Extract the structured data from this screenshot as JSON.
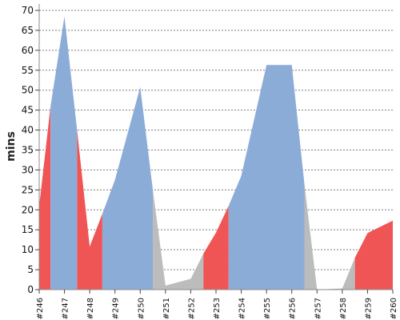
{
  "chart_data": {
    "type": "area",
    "ylabel": "mins",
    "xlabel": "",
    "ylim": [
      0,
      70
    ],
    "yticks": [
      0,
      5,
      10,
      15,
      20,
      25,
      30,
      35,
      40,
      45,
      50,
      55,
      60,
      65,
      70
    ],
    "grid": true,
    "categories": [
      "#246",
      "#247",
      "#248",
      "#249",
      "#250",
      "#251",
      "#252",
      "#253",
      "#254",
      "#255",
      "#256",
      "#257",
      "#258",
      "#259",
      "#260"
    ],
    "values": [
      21,
      68.5,
      10.8,
      27.5,
      50.8,
      1,
      2.7,
      14.3,
      28.5,
      56.3,
      56.3,
      0,
      0.3,
      14.2,
      17.3
    ],
    "segments": [
      {
        "status": "red",
        "from": 246,
        "to": 246.45,
        "y": [
          21,
          46
        ]
      },
      {
        "status": "blue",
        "from": 246.45,
        "to": 247.5,
        "y": [
          46,
          68.5,
          40
        ]
      },
      {
        "status": "red",
        "from": 247.5,
        "to": 248.5,
        "y": [
          40,
          10.8,
          19
        ]
      },
      {
        "status": "blue",
        "from": 248.5,
        "to": 250.5,
        "y": [
          19,
          27.5,
          50.8,
          25
        ]
      },
      {
        "status": "gray",
        "from": 250.5,
        "to": 252.5,
        "y": [
          25,
          1,
          2.7,
          9
        ]
      },
      {
        "status": "red",
        "from": 252.5,
        "to": 253.5,
        "y": [
          9,
          14.3,
          21
        ]
      },
      {
        "status": "blue",
        "from": 253.5,
        "to": 256.5,
        "y": [
          21,
          28.5,
          56.3,
          56.3,
          26.5
        ]
      },
      {
        "status": "gray",
        "from": 256.5,
        "to": 258.5,
        "y": [
          26.5,
          0,
          0.3,
          8
        ]
      },
      {
        "status": "red",
        "from": 258.5,
        "to": 260,
        "y": [
          8,
          14.2,
          17.3
        ]
      }
    ],
    "colors": {
      "red": "#f05555",
      "blue": "#8cacd8",
      "gray": "#bcbcbc"
    }
  }
}
